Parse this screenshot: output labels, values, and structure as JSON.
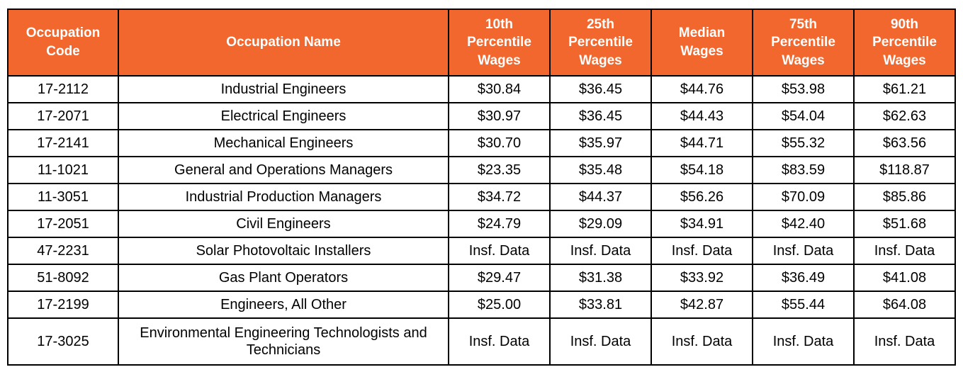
{
  "chart_data": {
    "type": "table",
    "title": "",
    "columns": [
      "Occupation Code",
      "Occupation Name",
      "10th Percentile Wages",
      "25th Percentile Wages",
      "Median Wages",
      "75th Percentile Wages",
      "90th Percentile Wages"
    ],
    "rows": [
      [
        "17-2112",
        "Industrial Engineers",
        "$30.84",
        "$36.45",
        "$44.76",
        "$53.98",
        "$61.21"
      ],
      [
        "17-2071",
        "Electrical Engineers",
        "$30.97",
        "$36.45",
        "$44.43",
        "$54.04",
        "$62.63"
      ],
      [
        "17-2141",
        "Mechanical Engineers",
        "$30.70",
        "$35.97",
        "$44.71",
        "$55.32",
        "$63.56"
      ],
      [
        "11-1021",
        "General and Operations Managers",
        "$23.35",
        "$35.48",
        "$54.18",
        "$83.59",
        "$118.87"
      ],
      [
        "11-3051",
        "Industrial Production Managers",
        "$34.72",
        "$44.37",
        "$56.26",
        "$70.09",
        "$85.86"
      ],
      [
        "17-2051",
        "Civil Engineers",
        "$24.79",
        "$29.09",
        "$34.91",
        "$42.40",
        "$51.68"
      ],
      [
        "47-2231",
        "Solar Photovoltaic Installers",
        "Insf. Data",
        "Insf. Data",
        "Insf. Data",
        "Insf. Data",
        "Insf. Data"
      ],
      [
        "51-8092",
        "Gas Plant Operators",
        "$29.47",
        "$31.38",
        "$33.92",
        "$36.49",
        "$41.08"
      ],
      [
        "17-2199",
        "Engineers, All Other",
        "$25.00",
        "$33.81",
        "$42.87",
        "$55.44",
        "$64.08"
      ],
      [
        "17-3025",
        "Environmental Engineering Technologists and Technicians",
        "Insf. Data",
        "Insf. Data",
        "Insf. Data",
        "Insf. Data",
        "Insf. Data"
      ]
    ],
    "colors": {
      "header_bg": "#F1672E",
      "header_text": "#FFFFFF",
      "border": "#000000",
      "cell_text": "#000000"
    },
    "layout": {
      "grid": "on",
      "header_rows": 1,
      "all_cells_centered": true
    }
  }
}
